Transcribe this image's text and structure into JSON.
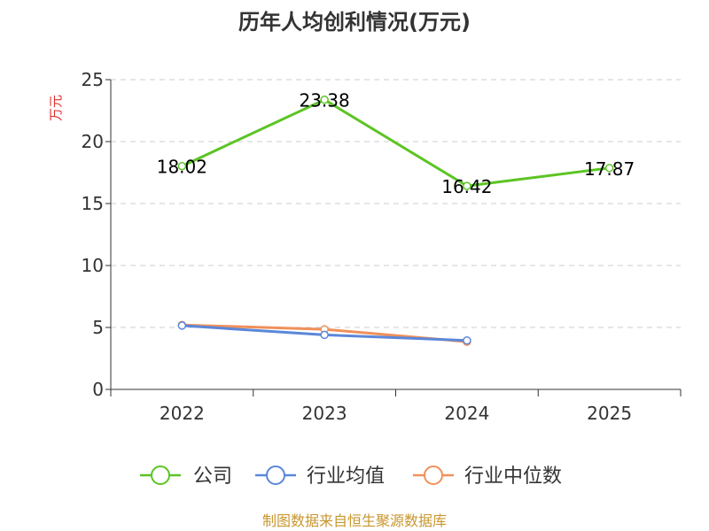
{
  "title": "历年人均创利情况(万元)",
  "source": "制图数据来自恒生聚源数据库",
  "colors": {
    "axis_label": "#e03030",
    "source": "#c8962e",
    "grid": "#cccccc",
    "axis": "#333333"
  },
  "chart_data": {
    "type": "line",
    "title": "历年人均创利情况(万元)",
    "ylabel": "万元",
    "xlabel": "",
    "categories": [
      "2022",
      "2023",
      "2024",
      "2025"
    ],
    "ylim": [
      0,
      25
    ],
    "yticks": [
      0,
      5,
      10,
      15,
      20,
      25
    ],
    "grid": true,
    "legend_position": "bottom",
    "series": [
      {
        "name": "公司",
        "color": "#5cc424",
        "values": [
          18.02,
          23.38,
          16.42,
          17.87
        ],
        "show_labels": true
      },
      {
        "name": "行业均值",
        "color": "#5b87d9",
        "values": [
          5.15,
          4.4,
          3.95,
          null
        ],
        "show_labels": false
      },
      {
        "name": "行业中位数",
        "color": "#f0905a",
        "values": [
          5.2,
          4.85,
          3.85,
          null
        ],
        "show_labels": false
      }
    ]
  }
}
